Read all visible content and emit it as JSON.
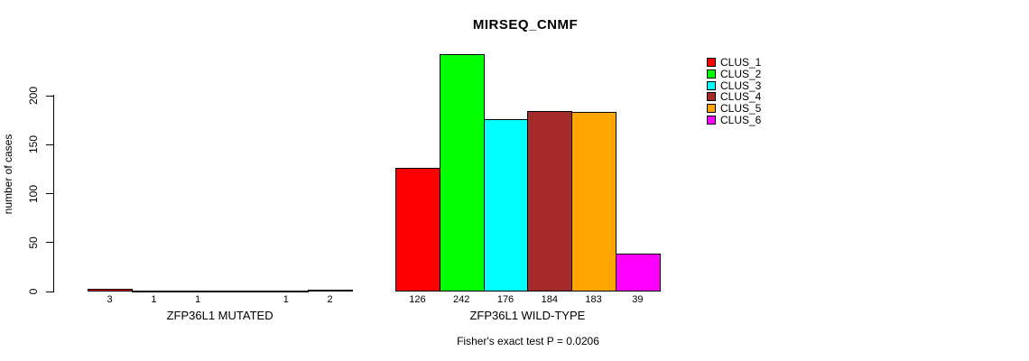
{
  "chart_data": {
    "type": "bar",
    "title": "MIRSEQ_CNMF",
    "ylabel": "number of cases",
    "xlabel": "",
    "ylim": [
      0,
      200
    ],
    "yticks": [
      0,
      50,
      100,
      150,
      200
    ],
    "grid": false,
    "legend_position": "right",
    "categories": [
      "ZFP36L1 MUTATED",
      "ZFP36L1 WILD-TYPE"
    ],
    "series": [
      {
        "name": "CLUS_1",
        "color": "#FF0000",
        "values": [
          3,
          126
        ]
      },
      {
        "name": "CLUS_2",
        "color": "#00FF00",
        "values": [
          1,
          242
        ]
      },
      {
        "name": "CLUS_3",
        "color": "#00FFFF",
        "values": [
          1,
          176
        ]
      },
      {
        "name": "CLUS_4",
        "color": "#A52A2A",
        "values": [
          0,
          184
        ]
      },
      {
        "name": "CLUS_5",
        "color": "#FFA500",
        "values": [
          1,
          183
        ]
      },
      {
        "name": "CLUS_6",
        "color": "#FF00FF",
        "values": [
          2,
          39
        ]
      }
    ],
    "bar_value_labels": [
      [
        "3",
        "1",
        "1",
        "",
        "1",
        "2"
      ],
      [
        "126",
        "242",
        "176",
        "184",
        "183",
        "39"
      ]
    ],
    "annotation": "Fisher's exact test P = 0.0206"
  }
}
